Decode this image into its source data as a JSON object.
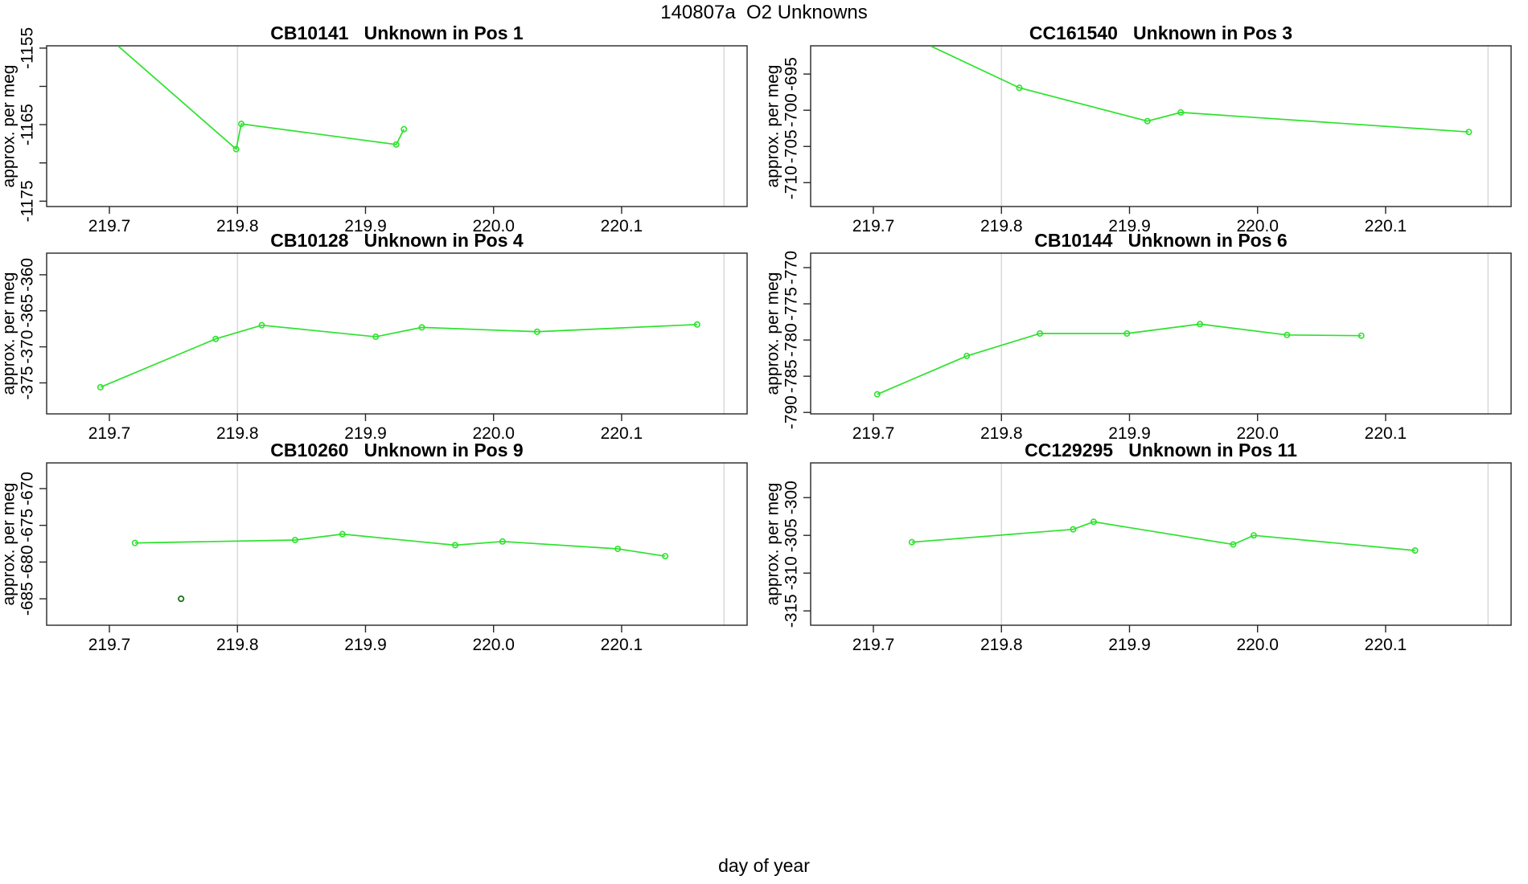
{
  "figure": {
    "title": "140807a  O2 Unknowns",
    "xlabel": "day of year",
    "ylabel": "approx. per meg",
    "colors": {
      "series": "#2ce22c",
      "outlier": "#1d701d",
      "grid": "#d8d8d8",
      "frame": "#262626",
      "text": "#000000"
    }
  },
  "chart_data": {
    "type": "line",
    "layout": {
      "rows": 3,
      "cols": 2,
      "legend": "none",
      "grid": "vertical-reference-lines-only"
    },
    "x_range": [
      219.651,
      220.198
    ],
    "x_ticks": [
      219.7,
      219.8,
      219.9,
      220.0,
      220.1
    ],
    "x_tick_labels": [
      "219.7",
      "219.8",
      "219.9",
      "220.0",
      "220.1"
    ],
    "gridlines_x": [
      219.8,
      220.18
    ],
    "panels": [
      {
        "id": "CB10141",
        "title": "CB10141   Unknown in Pos 1",
        "y_range": [
          -1175.7,
          -1154.7
        ],
        "y_ticks": [
          {
            "v": -1155,
            "label": "-1155"
          },
          {
            "v": -1160,
            "label": ""
          },
          {
            "v": -1165,
            "label": "-1165"
          },
          {
            "v": -1170,
            "label": ""
          },
          {
            "v": -1175,
            "label": "-1175"
          }
        ],
        "line_points": [
          [
            219.707,
            -1154.75
          ],
          [
            219.799,
            -1168.2
          ],
          [
            219.803,
            -1164.9
          ],
          [
            219.924,
            -1167.6
          ],
          [
            219.93,
            -1165.6
          ]
        ],
        "marker_points": [
          [
            219.799,
            -1168.2
          ],
          [
            219.803,
            -1164.9
          ],
          [
            219.924,
            -1167.6
          ],
          [
            219.93,
            -1165.6
          ]
        ],
        "extra_points": []
      },
      {
        "id": "CC161540",
        "title": "CC161540   Unknown in Pos 3",
        "y_range": [
          -713.3,
          -691.1
        ],
        "y_ticks": [
          {
            "v": -695,
            "label": "-695"
          },
          {
            "v": -700,
            "label": "-700"
          },
          {
            "v": -705,
            "label": "-705"
          },
          {
            "v": -710,
            "label": "-710"
          }
        ],
        "line_points": [
          [
            219.745,
            -691.15
          ],
          [
            219.814,
            -696.9
          ],
          [
            219.914,
            -701.5
          ],
          [
            219.94,
            -700.3
          ],
          [
            220.165,
            -703.0
          ]
        ],
        "marker_points": [
          [
            219.814,
            -696.9
          ],
          [
            219.914,
            -701.5
          ],
          [
            219.94,
            -700.3
          ],
          [
            220.165,
            -703.0
          ]
        ],
        "extra_points": []
      },
      {
        "id": "CB10128",
        "title": "CB10128   Unknown in Pos 4",
        "y_range": [
          -379.3,
          -357.0
        ],
        "y_ticks": [
          {
            "v": -360,
            "label": "-360"
          },
          {
            "v": -365,
            "label": "-365"
          },
          {
            "v": -370,
            "label": "-370"
          },
          {
            "v": -375,
            "label": "-375"
          }
        ],
        "line_points": [
          [
            219.693,
            -375.6
          ],
          [
            219.783,
            -368.9
          ],
          [
            219.819,
            -367.0
          ],
          [
            219.908,
            -368.6
          ],
          [
            219.944,
            -367.3
          ],
          [
            220.034,
            -367.9
          ],
          [
            220.159,
            -366.9
          ]
        ],
        "marker_points": [
          [
            219.693,
            -375.6
          ],
          [
            219.783,
            -368.9
          ],
          [
            219.819,
            -367.0
          ],
          [
            219.908,
            -368.6
          ],
          [
            219.944,
            -367.3
          ],
          [
            220.034,
            -367.9
          ],
          [
            220.159,
            -366.9
          ]
        ],
        "extra_points": []
      },
      {
        "id": "CB10144",
        "title": "CB10144   Unknown in Pos 6",
        "y_range": [
          -790.2,
          -768.0
        ],
        "y_ticks": [
          {
            "v": -770,
            "label": "-770"
          },
          {
            "v": -775,
            "label": "-775"
          },
          {
            "v": -780,
            "label": "-780"
          },
          {
            "v": -785,
            "label": "-785"
          },
          {
            "v": -790,
            "label": "-790"
          }
        ],
        "line_points": [
          [
            219.703,
            -787.5
          ],
          [
            219.773,
            -782.2
          ],
          [
            219.83,
            -779.1
          ],
          [
            219.898,
            -779.1
          ],
          [
            219.955,
            -777.8
          ],
          [
            220.023,
            -779.3
          ],
          [
            220.081,
            -779.4
          ]
        ],
        "marker_points": [
          [
            219.703,
            -787.5
          ],
          [
            219.773,
            -782.2
          ],
          [
            219.83,
            -779.1
          ],
          [
            219.898,
            -779.1
          ],
          [
            219.955,
            -777.8
          ],
          [
            220.023,
            -779.3
          ],
          [
            220.081,
            -779.4
          ]
        ],
        "extra_points": []
      },
      {
        "id": "CB10260",
        "title": "CB10260   Unknown in Pos 9",
        "y_range": [
          -688.6,
          -666.5
        ],
        "y_ticks": [
          {
            "v": -670,
            "label": "-670"
          },
          {
            "v": -675,
            "label": "-675"
          },
          {
            "v": -680,
            "label": "-680"
          },
          {
            "v": -685,
            "label": "-685"
          }
        ],
        "line_points": [
          [
            219.72,
            -677.4
          ],
          [
            219.845,
            -677.0
          ],
          [
            219.882,
            -676.2
          ],
          [
            219.97,
            -677.7
          ],
          [
            220.007,
            -677.2
          ],
          [
            220.097,
            -678.2
          ],
          [
            220.134,
            -679.2
          ]
        ],
        "marker_points": [
          [
            219.72,
            -677.4
          ],
          [
            219.845,
            -677.0
          ],
          [
            219.882,
            -676.2
          ],
          [
            219.97,
            -677.7
          ],
          [
            220.007,
            -677.2
          ],
          [
            220.097,
            -678.2
          ],
          [
            220.134,
            -679.2
          ]
        ],
        "extra_points": [
          {
            "x": 219.756,
            "y": -685.0,
            "color": "outlier"
          }
        ]
      },
      {
        "id": "CC129295",
        "title": "CC129295   Unknown in Pos 11",
        "y_range": [
          -316.9,
          -295.4
        ],
        "y_ticks": [
          {
            "v": -300,
            "label": "-300"
          },
          {
            "v": -305,
            "label": "-305"
          },
          {
            "v": -310,
            "label": "-310"
          },
          {
            "v": -315,
            "label": "-315"
          }
        ],
        "line_points": [
          [
            219.73,
            -305.9
          ],
          [
            219.856,
            -304.2
          ],
          [
            219.872,
            -303.2
          ],
          [
            219.981,
            -306.2
          ],
          [
            219.997,
            -305.0
          ],
          [
            220.123,
            -307.0
          ]
        ],
        "marker_points": [
          [
            219.73,
            -305.9
          ],
          [
            219.856,
            -304.2
          ],
          [
            219.872,
            -303.2
          ],
          [
            219.981,
            -306.2
          ],
          [
            219.997,
            -305.0
          ],
          [
            220.123,
            -307.0
          ]
        ],
        "extra_points": []
      }
    ]
  }
}
